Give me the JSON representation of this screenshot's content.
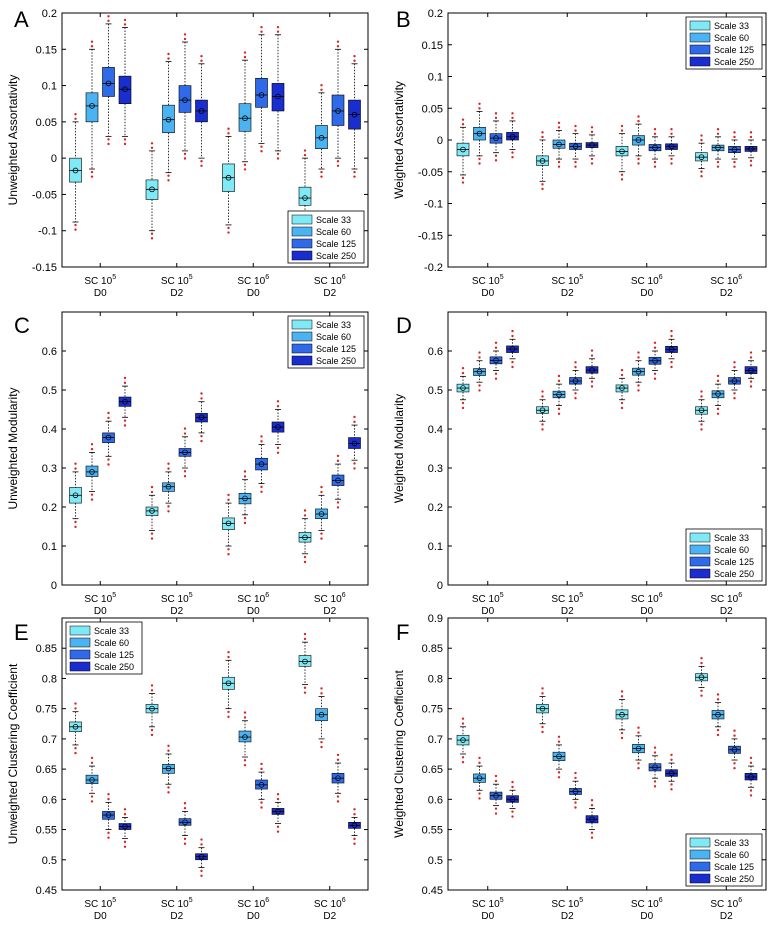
{
  "colors": {
    "Scale 33": "#7fe9f5",
    "Scale 60": "#4bb3f1",
    "Scale 125": "#2f6be8",
    "Scale 250": "#1a2ecf",
    "outlier": "#d62728"
  },
  "chart_data": [
    {
      "id": "A",
      "type": "box",
      "ylabel": "Unweighted Assortativity",
      "ylim": [
        -0.15,
        0.2
      ],
      "yticks": [
        -0.15,
        -0.1,
        -0.05,
        0,
        0.05,
        0.1,
        0.15,
        0.2
      ],
      "legend_pos": "bottom-right",
      "categories": [
        {
          "line1": "SC 10",
          "sup": "5",
          "line2": "D0"
        },
        {
          "line1": "SC 10",
          "sup": "5",
          "line2": "D2"
        },
        {
          "line1": "SC 10",
          "sup": "6",
          "line2": "D0"
        },
        {
          "line1": "SC 10",
          "sup": "6",
          "line2": "D2"
        }
      ],
      "series": [
        {
          "name": "Scale 33",
          "boxes": [
            [
              -0.088,
              -0.033,
              -0.017,
              0.0,
              0.05
            ],
            [
              -0.1,
              -0.057,
              -0.043,
              -0.03,
              0.01
            ],
            [
              -0.092,
              -0.046,
              -0.027,
              -0.008,
              0.03
            ],
            [
              -0.103,
              -0.065,
              -0.055,
              -0.04,
              0.0
            ]
          ]
        },
        {
          "name": "Scale 60",
          "boxes": [
            [
              -0.015,
              0.05,
              0.072,
              0.09,
              0.15
            ],
            [
              -0.02,
              0.035,
              0.053,
              0.073,
              0.133
            ],
            [
              -0.005,
              0.037,
              0.055,
              0.075,
              0.135
            ],
            [
              -0.015,
              0.013,
              0.028,
              0.045,
              0.09
            ]
          ]
        },
        {
          "name": "Scale 125",
          "boxes": [
            [
              0.03,
              0.085,
              0.103,
              0.125,
              0.185
            ],
            [
              0.01,
              0.063,
              0.08,
              0.1,
              0.16
            ],
            [
              0.02,
              0.07,
              0.087,
              0.11,
              0.17
            ],
            [
              0.0,
              0.045,
              0.065,
              0.087,
              0.15
            ]
          ]
        },
        {
          "name": "Scale 250",
          "boxes": [
            [
              0.03,
              0.075,
              0.095,
              0.113,
              0.18
            ],
            [
              0.0,
              0.05,
              0.065,
              0.08,
              0.13
            ],
            [
              0.01,
              0.065,
              0.085,
              0.103,
              0.17
            ],
            [
              -0.015,
              0.04,
              0.06,
              0.08,
              0.13
            ]
          ]
        }
      ]
    },
    {
      "id": "B",
      "type": "box",
      "ylabel": "Weighted Assortativity",
      "ylim": [
        -0.2,
        0.2
      ],
      "yticks": [
        -0.2,
        -0.15,
        -0.1,
        -0.05,
        0,
        0.05,
        0.1,
        0.15,
        0.2
      ],
      "legend_pos": "top-right",
      "categories": [
        {
          "line1": "SC 10",
          "sup": "5",
          "line2": "D0"
        },
        {
          "line1": "SC 10",
          "sup": "5",
          "line2": "D2"
        },
        {
          "line1": "SC 10",
          "sup": "6",
          "line2": "D0"
        },
        {
          "line1": "SC 10",
          "sup": "6",
          "line2": "D2"
        }
      ],
      "series": [
        {
          "name": "Scale 33",
          "boxes": [
            [
              -0.055,
              -0.025,
              -0.015,
              -0.005,
              0.02
            ],
            [
              -0.065,
              -0.04,
              -0.033,
              -0.025,
              0.0
            ],
            [
              -0.05,
              -0.025,
              -0.018,
              -0.01,
              0.01
            ],
            [
              -0.045,
              -0.033,
              -0.027,
              -0.02,
              -0.005
            ]
          ]
        },
        {
          "name": "Scale 60",
          "boxes": [
            [
              -0.025,
              0.0,
              0.01,
              0.02,
              0.045
            ],
            [
              -0.03,
              -0.013,
              -0.007,
              0.0,
              0.015
            ],
            [
              -0.025,
              -0.008,
              0.0,
              0.007,
              0.025
            ],
            [
              -0.03,
              -0.017,
              -0.012,
              -0.008,
              0.005
            ]
          ]
        },
        {
          "name": "Scale 125",
          "boxes": [
            [
              -0.02,
              -0.005,
              0.003,
              0.01,
              0.03
            ],
            [
              -0.03,
              -0.015,
              -0.01,
              -0.005,
              0.01
            ],
            [
              -0.03,
              -0.017,
              -0.012,
              -0.007,
              0.005
            ],
            [
              -0.03,
              -0.02,
              -0.015,
              -0.01,
              0.0
            ]
          ]
        },
        {
          "name": "Scale 250",
          "boxes": [
            [
              -0.015,
              0.0,
              0.005,
              0.012,
              0.03
            ],
            [
              -0.025,
              -0.012,
              -0.008,
              -0.004,
              0.008
            ],
            [
              -0.025,
              -0.015,
              -0.01,
              -0.006,
              0.005
            ],
            [
              -0.028,
              -0.018,
              -0.014,
              -0.01,
              0.0
            ]
          ]
        }
      ]
    },
    {
      "id": "C",
      "type": "box",
      "ylabel": "Unweighted Modularity",
      "ylim": [
        0,
        0.7
      ],
      "yticks": [
        0,
        0.1,
        0.2,
        0.3,
        0.4,
        0.5,
        0.6
      ],
      "legend_pos": "top-right",
      "categories": [
        {
          "line1": "SC 10",
          "sup": "5",
          "line2": "D0"
        },
        {
          "line1": "SC 10",
          "sup": "5",
          "line2": "D2"
        },
        {
          "line1": "SC 10",
          "sup": "6",
          "line2": "D0"
        },
        {
          "line1": "SC 10",
          "sup": "6",
          "line2": "D2"
        }
      ],
      "series": [
        {
          "name": "Scale 33",
          "boxes": [
            [
              0.17,
              0.21,
              0.23,
              0.25,
              0.29
            ],
            [
              0.14,
              0.178,
              0.19,
              0.2,
              0.23
            ],
            [
              0.1,
              0.142,
              0.158,
              0.172,
              0.21
            ],
            [
              0.08,
              0.11,
              0.122,
              0.135,
              0.17
            ]
          ]
        },
        {
          "name": "Scale 60",
          "boxes": [
            [
              0.24,
              0.278,
              0.29,
              0.305,
              0.34
            ],
            [
              0.21,
              0.24,
              0.252,
              0.262,
              0.29
            ],
            [
              0.18,
              0.208,
              0.222,
              0.235,
              0.27
            ],
            [
              0.14,
              0.17,
              0.182,
              0.195,
              0.23
            ]
          ]
        },
        {
          "name": "Scale 125",
          "boxes": [
            [
              0.33,
              0.365,
              0.378,
              0.39,
              0.42
            ],
            [
              0.3,
              0.33,
              0.34,
              0.35,
              0.38
            ],
            [
              0.26,
              0.295,
              0.31,
              0.325,
              0.36
            ],
            [
              0.22,
              0.255,
              0.268,
              0.282,
              0.31
            ]
          ]
        },
        {
          "name": "Scale 250",
          "boxes": [
            [
              0.43,
              0.458,
              0.47,
              0.482,
              0.51
            ],
            [
              0.39,
              0.418,
              0.43,
              0.44,
              0.47
            ],
            [
              0.36,
              0.392,
              0.405,
              0.418,
              0.45
            ],
            [
              0.32,
              0.35,
              0.363,
              0.378,
              0.41
            ]
          ]
        }
      ]
    },
    {
      "id": "D",
      "type": "box",
      "ylabel": "Weighted Modularity",
      "ylim": [
        0,
        0.7
      ],
      "yticks": [
        0,
        0.1,
        0.2,
        0.3,
        0.4,
        0.5,
        0.6
      ],
      "legend_pos": "bottom-right",
      "categories": [
        {
          "line1": "SC 10",
          "sup": "5",
          "line2": "D0"
        },
        {
          "line1": "SC 10",
          "sup": "5",
          "line2": "D2"
        },
        {
          "line1": "SC 10",
          "sup": "6",
          "line2": "D0"
        },
        {
          "line1": "SC 10",
          "sup": "6",
          "line2": "D2"
        }
      ],
      "series": [
        {
          "name": "Scale 33",
          "boxes": [
            [
              0.475,
              0.495,
              0.505,
              0.515,
              0.535
            ],
            [
              0.42,
              0.44,
              0.448,
              0.457,
              0.475
            ],
            [
              0.475,
              0.495,
              0.505,
              0.513,
              0.53
            ],
            [
              0.42,
              0.438,
              0.448,
              0.457,
              0.475
            ]
          ]
        },
        {
          "name": "Scale 60",
          "boxes": [
            [
              0.52,
              0.537,
              0.547,
              0.555,
              0.575
            ],
            [
              0.46,
              0.48,
              0.488,
              0.497,
              0.515
            ],
            [
              0.52,
              0.538,
              0.547,
              0.556,
              0.575
            ],
            [
              0.46,
              0.48,
              0.49,
              0.498,
              0.515
            ]
          ]
        },
        {
          "name": "Scale 125",
          "boxes": [
            [
              0.55,
              0.567,
              0.576,
              0.585,
              0.6
            ],
            [
              0.5,
              0.515,
              0.523,
              0.532,
              0.55
            ],
            [
              0.55,
              0.566,
              0.575,
              0.584,
              0.6
            ],
            [
              0.5,
              0.515,
              0.523,
              0.532,
              0.55
            ]
          ]
        },
        {
          "name": "Scale 250",
          "boxes": [
            [
              0.58,
              0.596,
              0.605,
              0.613,
              0.63
            ],
            [
              0.53,
              0.543,
              0.551,
              0.56,
              0.58
            ],
            [
              0.58,
              0.596,
              0.604,
              0.612,
              0.63
            ],
            [
              0.53,
              0.542,
              0.55,
              0.56,
              0.575
            ]
          ]
        }
      ]
    },
    {
      "id": "E",
      "type": "box",
      "ylabel": "Unweighted Clustering Coefficient",
      "ylim": [
        0.45,
        0.9
      ],
      "yticks": [
        0.45,
        0.5,
        0.55,
        0.6,
        0.65,
        0.7,
        0.75,
        0.8,
        0.85
      ],
      "legend_pos": "top-left",
      "categories": [
        {
          "line1": "SC 10",
          "sup": "5",
          "line2": "D0"
        },
        {
          "line1": "SC 10",
          "sup": "5",
          "line2": "D2"
        },
        {
          "line1": "SC 10",
          "sup": "6",
          "line2": "D0"
        },
        {
          "line1": "SC 10",
          "sup": "6",
          "line2": "D2"
        }
      ],
      "series": [
        {
          "name": "Scale 33",
          "boxes": [
            [
              0.69,
              0.712,
              0.72,
              0.728,
              0.745
            ],
            [
              0.72,
              0.743,
              0.75,
              0.757,
              0.775
            ],
            [
              0.75,
              0.782,
              0.792,
              0.802,
              0.83
            ],
            [
              0.79,
              0.82,
              0.828,
              0.838,
              0.86
            ]
          ]
        },
        {
          "name": "Scale 60",
          "boxes": [
            [
              0.61,
              0.626,
              0.632,
              0.64,
              0.655
            ],
            [
              0.625,
              0.643,
              0.651,
              0.658,
              0.675
            ],
            [
              0.67,
              0.695,
              0.703,
              0.713,
              0.73
            ],
            [
              0.7,
              0.73,
              0.74,
              0.75,
              0.77
            ]
          ]
        },
        {
          "name": "Scale 125",
          "boxes": [
            [
              0.55,
              0.567,
              0.574,
              0.58,
              0.595
            ],
            [
              0.54,
              0.557,
              0.562,
              0.568,
              0.58
            ],
            [
              0.6,
              0.617,
              0.624,
              0.632,
              0.645
            ],
            [
              0.61,
              0.627,
              0.635,
              0.643,
              0.66
            ]
          ]
        },
        {
          "name": "Scale 250",
          "boxes": [
            [
              0.535,
              0.55,
              0.555,
              0.56,
              0.57
            ],
            [
              0.487,
              0.5,
              0.505,
              0.51,
              0.52
            ],
            [
              0.56,
              0.575,
              0.58,
              0.585,
              0.595
            ],
            [
              0.54,
              0.552,
              0.557,
              0.562,
              0.57
            ]
          ]
        }
      ]
    },
    {
      "id": "F",
      "type": "box",
      "ylabel": "Weighted Clustering Coefficient",
      "ylim": [
        0.45,
        0.9
      ],
      "yticks": [
        0.45,
        0.5,
        0.55,
        0.6,
        0.65,
        0.7,
        0.75,
        0.8,
        0.85,
        0.9
      ],
      "legend_pos": "bottom-right",
      "categories": [
        {
          "line1": "SC 10",
          "sup": "5",
          "line2": "D0"
        },
        {
          "line1": "SC 10",
          "sup": "5",
          "line2": "D2"
        },
        {
          "line1": "SC 10",
          "sup": "6",
          "line2": "D0"
        },
        {
          "line1": "SC 10",
          "sup": "6",
          "line2": "D2"
        }
      ],
      "series": [
        {
          "name": "Scale 33",
          "boxes": [
            [
              0.675,
              0.69,
              0.698,
              0.706,
              0.72
            ],
            [
              0.725,
              0.743,
              0.75,
              0.757,
              0.77
            ],
            [
              0.715,
              0.733,
              0.74,
              0.748,
              0.765
            ],
            [
              0.785,
              0.796,
              0.802,
              0.808,
              0.82
            ]
          ]
        },
        {
          "name": "Scale 60",
          "boxes": [
            [
              0.615,
              0.628,
              0.635,
              0.642,
              0.655
            ],
            [
              0.65,
              0.664,
              0.671,
              0.678,
              0.69
            ],
            [
              0.665,
              0.677,
              0.684,
              0.691,
              0.705
            ],
            [
              0.72,
              0.733,
              0.74,
              0.747,
              0.76
            ]
          ]
        },
        {
          "name": "Scale 125",
          "boxes": [
            [
              0.59,
              0.6,
              0.606,
              0.612,
              0.625
            ],
            [
              0.6,
              0.608,
              0.613,
              0.618,
              0.63
            ],
            [
              0.635,
              0.647,
              0.653,
              0.659,
              0.672
            ],
            [
              0.665,
              0.676,
              0.682,
              0.688,
              0.7
            ]
          ]
        },
        {
          "name": "Scale 250",
          "boxes": [
            [
              0.585,
              0.595,
              0.6,
              0.606,
              0.615
            ],
            [
              0.55,
              0.561,
              0.567,
              0.573,
              0.585
            ],
            [
              0.63,
              0.638,
              0.643,
              0.649,
              0.66
            ],
            [
              0.62,
              0.632,
              0.637,
              0.643,
              0.655
            ]
          ]
        }
      ]
    }
  ]
}
